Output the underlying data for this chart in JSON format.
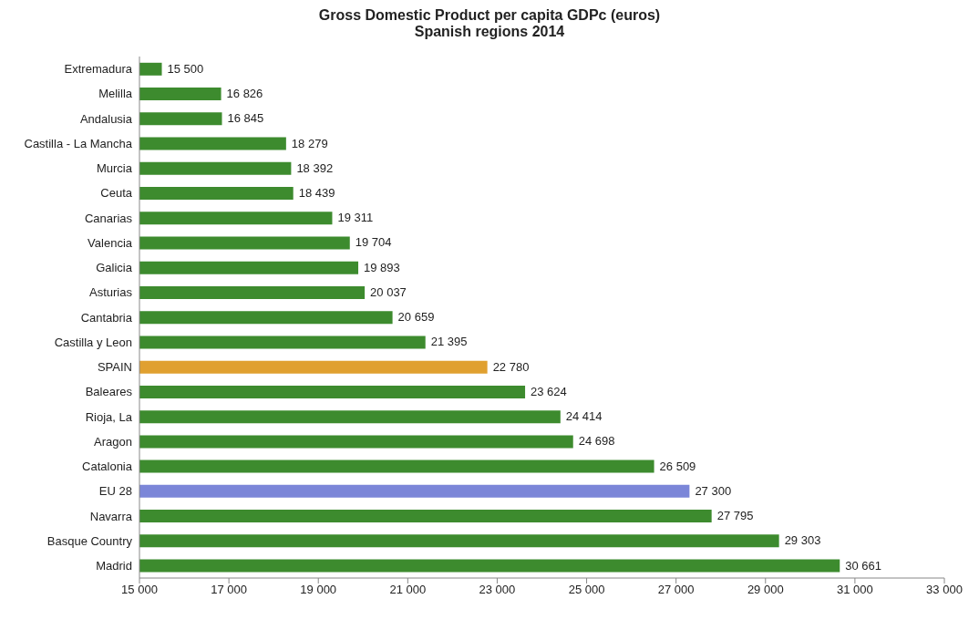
{
  "chart_data": {
    "type": "bar",
    "orientation": "horizontal",
    "title": "Gross Domestic Product per capita GDPc (euros)",
    "subtitle": "Spanish regions 2014",
    "categories": [
      "Extremadura",
      "Melilla",
      "Andalusia",
      "Castilla - La Mancha",
      "Murcia",
      "Ceuta",
      "Canarias",
      "Valencia",
      "Galicia",
      "Asturias",
      "Cantabria",
      "Castilla y Leon",
      "SPAIN",
      "Baleares",
      "Rioja, La",
      "Aragon",
      "Catalonia",
      "EU 28",
      "Navarra",
      "Basque Country",
      "Madrid"
    ],
    "values": [
      15500,
      16826,
      16845,
      18279,
      18392,
      18439,
      19311,
      19704,
      19893,
      20037,
      20659,
      21395,
      22780,
      23624,
      24414,
      24698,
      26509,
      27300,
      27795,
      29303,
      30661
    ],
    "value_labels": [
      "15 500",
      "16 826",
      "16 845",
      "18 279",
      "18 392",
      "18 439",
      "19 311",
      "19 704",
      "19 893",
      "20 037",
      "20 659",
      "21 395",
      "22 780",
      "23 624",
      "24 414",
      "24 698",
      "26 509",
      "27 300",
      "27 795",
      "29 303",
      "30 661"
    ],
    "colors": [
      "#3d8b2e",
      "#3d8b2e",
      "#3d8b2e",
      "#3d8b2e",
      "#3d8b2e",
      "#3d8b2e",
      "#3d8b2e",
      "#3d8b2e",
      "#3d8b2e",
      "#3d8b2e",
      "#3d8b2e",
      "#3d8b2e",
      "#e0a030",
      "#3d8b2e",
      "#3d8b2e",
      "#3d8b2e",
      "#3d8b2e",
      "#7b86d8",
      "#3d8b2e",
      "#3d8b2e",
      "#3d8b2e"
    ],
    "xlim": [
      15000,
      33000
    ],
    "xticks": [
      {
        "value": 15000,
        "label": "15 000"
      },
      {
        "value": 17000,
        "label": "17 000"
      },
      {
        "value": 19000,
        "label": "19 000"
      },
      {
        "value": 21000,
        "label": "21 000"
      },
      {
        "value": 23000,
        "label": "23 000"
      },
      {
        "value": 25000,
        "label": "25 000"
      },
      {
        "value": 27000,
        "label": "27 000"
      },
      {
        "value": 29000,
        "label": "29 000"
      },
      {
        "value": 31000,
        "label": "31 000"
      },
      {
        "value": 33000,
        "label": "33 000"
      }
    ],
    "grid": false
  }
}
